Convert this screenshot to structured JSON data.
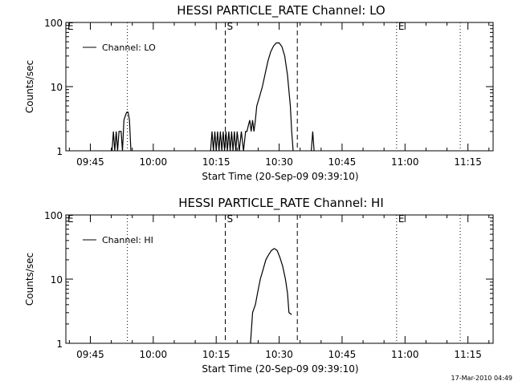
{
  "footer_stamp": "17-Mar-2010 04:49",
  "chart_data": [
    {
      "type": "line",
      "title": "HESSI PARTICLE_RATE Channel: LO",
      "xlabel": "Start Time (20-Sep-09 09:39:10)",
      "ylabel": "Counts/sec",
      "yscale": "log",
      "xlim": [
        "09:39:10",
        "11:21:00"
      ],
      "ylim": [
        1,
        100
      ],
      "x_ticks": [
        "09:45",
        "10:00",
        "10:15",
        "10:30",
        "10:45",
        "11:00",
        "11:15"
      ],
      "y_ticks": [
        "1",
        "10",
        "100"
      ],
      "legend": {
        "entries": [
          "Channel: LO"
        ],
        "position": "top-left"
      },
      "markers": [
        {
          "label": "E",
          "time": "09:39:10",
          "style": "none"
        },
        {
          "label": "",
          "time": "09:53:50",
          "style": "dotted"
        },
        {
          "label": "S",
          "time": "10:17:10",
          "style": "dashed"
        },
        {
          "label": "",
          "time": "10:34:20",
          "style": "dashed"
        },
        {
          "label": "E",
          "time": "10:58:00",
          "style": "dotted"
        },
        {
          "label": "",
          "time": "11:13:10",
          "style": "dotted"
        }
      ],
      "series": [
        {
          "name": "Channel: LO",
          "segments": [
            [
              [
                "09:50:10",
                1
              ],
              [
                "09:50:30",
                2
              ],
              [
                "09:50:50",
                1
              ],
              [
                "09:51:10",
                2
              ],
              [
                "09:51:30",
                1
              ],
              [
                "09:51:50",
                2
              ],
              [
                "09:52:20",
                2
              ],
              [
                "09:52:40",
                1
              ],
              [
                "09:53:00",
                3
              ],
              [
                "09:53:20",
                3.5
              ],
              [
                "09:53:40",
                4
              ],
              [
                "09:54:00",
                4
              ],
              [
                "09:54:20",
                3
              ],
              [
                "09:54:40",
                1
              ]
            ],
            [
              [
                "10:13:40",
                1
              ],
              [
                "10:14:00",
                2
              ],
              [
                "10:14:20",
                1
              ],
              [
                "10:14:40",
                2
              ],
              [
                "10:15:00",
                1
              ],
              [
                "10:15:20",
                2
              ],
              [
                "10:15:40",
                1
              ],
              [
                "10:16:00",
                2
              ],
              [
                "10:16:20",
                1
              ],
              [
                "10:16:40",
                2
              ],
              [
                "10:17:00",
                1
              ],
              [
                "10:17:20",
                2
              ],
              [
                "10:17:40",
                1
              ],
              [
                "10:18:00",
                2
              ],
              [
                "10:18:20",
                1
              ],
              [
                "10:18:40",
                2
              ],
              [
                "10:19:00",
                1
              ],
              [
                "10:19:20",
                2
              ],
              [
                "10:19:40",
                1
              ],
              [
                "10:20:00",
                2
              ],
              [
                "10:20:30",
                1
              ],
              [
                "10:21:00",
                2
              ],
              [
                "10:21:30",
                1
              ],
              [
                "10:22:00",
                2
              ],
              [
                "10:22:20",
                2
              ],
              [
                "10:22:40",
                2.5
              ],
              [
                "10:23:00",
                3
              ],
              [
                "10:23:20",
                2
              ],
              [
                "10:23:40",
                3
              ],
              [
                "10:24:00",
                2
              ],
              [
                "10:24:20",
                3
              ],
              [
                "10:24:40",
                5
              ],
              [
                "10:25:20",
                7
              ],
              [
                "10:26:00",
                10
              ],
              [
                "10:26:40",
                16
              ],
              [
                "10:27:20",
                25
              ],
              [
                "10:28:00",
                35
              ],
              [
                "10:28:40",
                43
              ],
              [
                "10:29:20",
                48
              ],
              [
                "10:30:00",
                48
              ],
              [
                "10:30:40",
                42
              ],
              [
                "10:31:20",
                30
              ],
              [
                "10:32:00",
                15
              ],
              [
                "10:32:40",
                5
              ],
              [
                "10:33:00",
                2
              ],
              [
                "10:33:20",
                1
              ]
            ],
            [
              [
                "10:37:40",
                1
              ],
              [
                "10:38:00",
                2
              ],
              [
                "10:38:20",
                1
              ]
            ]
          ]
        }
      ]
    },
    {
      "type": "line",
      "title": "HESSI PARTICLE_RATE Channel: HI",
      "xlabel": "Start Time (20-Sep-09 09:39:10)",
      "ylabel": "Counts/sec",
      "yscale": "log",
      "xlim": [
        "09:39:10",
        "11:21:00"
      ],
      "ylim": [
        1,
        100
      ],
      "x_ticks": [
        "09:45",
        "10:00",
        "10:15",
        "10:30",
        "10:45",
        "11:00",
        "11:15"
      ],
      "y_ticks": [
        "1",
        "10",
        "100"
      ],
      "legend": {
        "entries": [
          "Channel: HI"
        ],
        "position": "top-left"
      },
      "markers": [
        {
          "label": "E",
          "time": "09:39:10",
          "style": "none"
        },
        {
          "label": "",
          "time": "09:53:50",
          "style": "dotted"
        },
        {
          "label": "S",
          "time": "10:17:10",
          "style": "dashed"
        },
        {
          "label": "",
          "time": "10:34:20",
          "style": "dashed"
        },
        {
          "label": "E",
          "time": "10:58:00",
          "style": "dotted"
        },
        {
          "label": "",
          "time": "11:13:10",
          "style": "dotted"
        }
      ],
      "series": [
        {
          "name": "Channel: HI",
          "segments": [
            [
              [
                "10:23:10",
                1
              ],
              [
                "10:23:40",
                3
              ],
              [
                "10:24:20",
                4
              ],
              [
                "10:24:50",
                6
              ],
              [
                "10:25:30",
                10
              ],
              [
                "10:26:10",
                14
              ],
              [
                "10:26:50",
                20
              ],
              [
                "10:27:30",
                24
              ],
              [
                "10:28:10",
                28
              ],
              [
                "10:28:50",
                30
              ],
              [
                "10:29:30",
                28
              ],
              [
                "10:30:10",
                22
              ],
              [
                "10:30:50",
                16
              ],
              [
                "10:31:30",
                10
              ],
              [
                "10:32:00",
                6
              ],
              [
                "10:32:20",
                3
              ],
              [
                "10:33:00",
                2.8
              ]
            ]
          ]
        }
      ]
    }
  ]
}
